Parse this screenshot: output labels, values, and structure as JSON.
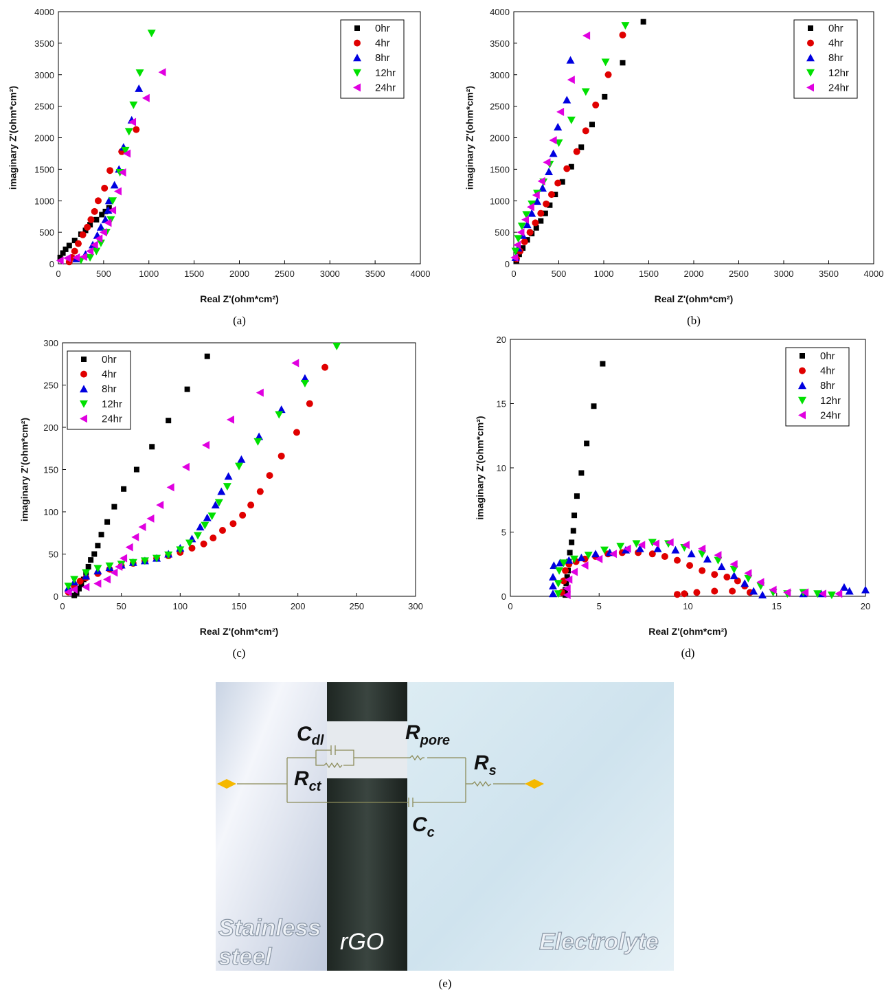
{
  "chart_data": [
    {
      "type": "scatter",
      "caption": "(a)",
      "x_label": "Real Z'(ohm*cm²)",
      "y_label": "imaginary Z'(ohm*cm²)",
      "xlim": [
        0,
        4000
      ],
      "ylim": [
        0,
        4000
      ],
      "xticks": [
        0,
        500,
        1000,
        1500,
        2000,
        2500,
        3000,
        3500,
        4000
      ],
      "yticks": [
        0,
        500,
        1000,
        1500,
        2000,
        2500,
        3000,
        3500,
        4000
      ],
      "legend": "upper right",
      "series": [
        {
          "name": "0hr",
          "color": "#000000",
          "marker": "square",
          "x": [
            20,
            50,
            80,
            120,
            180,
            250,
            300,
            350,
            420,
            480,
            520,
            560
          ],
          "y": [
            100,
            170,
            230,
            290,
            370,
            470,
            530,
            620,
            700,
            780,
            830,
            890
          ]
        },
        {
          "name": "4hr",
          "color": "#e00000",
          "marker": "circle",
          "x": [
            120,
            150,
            180,
            220,
            270,
            320,
            360,
            400,
            440,
            510,
            570,
            700,
            860
          ],
          "y": [
            30,
            100,
            200,
            320,
            460,
            580,
            700,
            830,
            1000,
            1200,
            1480,
            1780,
            2130
          ]
        },
        {
          "name": "8hr",
          "color": "#0000e0",
          "marker": "triangle-up",
          "x": [
            200,
            300,
            380,
            430,
            470,
            520,
            550,
            560,
            620,
            670,
            720,
            810,
            890
          ],
          "y": [
            80,
            150,
            300,
            450,
            580,
            700,
            850,
            1000,
            1250,
            1500,
            1850,
            2280,
            2780
          ]
        },
        {
          "name": "12hr",
          "color": "#00e000",
          "marker": "triangle-down",
          "x": [
            250,
            350,
            420,
            470,
            530,
            580,
            600,
            680,
            740,
            780,
            830,
            900,
            1030
          ],
          "y": [
            60,
            100,
            200,
            330,
            500,
            700,
            1000,
            1450,
            1800,
            2100,
            2520,
            3030,
            3660
          ]
        },
        {
          "name": "24hr",
          "color": "#e000e0",
          "marker": "triangle-left",
          "x": [
            20,
            100,
            200,
            280,
            350,
            400,
            450,
            500,
            550,
            600,
            660,
            710,
            760,
            820,
            970,
            1150
          ],
          "y": [
            50,
            90,
            100,
            110,
            200,
            300,
            400,
            500,
            650,
            850,
            1150,
            1450,
            1750,
            2250,
            2630,
            3040
          ]
        }
      ]
    },
    {
      "type": "scatter",
      "caption": "(b)",
      "x_label": "Real Z'(ohm*cm²)",
      "y_label": "imaginary Z'(ohm*cm²)",
      "xlim": [
        0,
        4000
      ],
      "ylim": [
        0,
        4000
      ],
      "xticks": [
        0,
        500,
        1000,
        1500,
        2000,
        2500,
        3000,
        3500,
        4000
      ],
      "yticks": [
        0,
        500,
        1000,
        1500,
        2000,
        2500,
        3000,
        3500,
        4000
      ],
      "legend": "upper right",
      "series": [
        {
          "name": "0hr",
          "color": "#000000",
          "marker": "square",
          "x": [
            30,
            60,
            100,
            150,
            200,
            250,
            300,
            350,
            400,
            460,
            540,
            640,
            750,
            870,
            1010,
            1210,
            1440
          ],
          "y": [
            50,
            150,
            250,
            380,
            480,
            570,
            680,
            800,
            930,
            1100,
            1300,
            1540,
            1850,
            2210,
            2650,
            3190,
            3840
          ]
        },
        {
          "name": "4hr",
          "color": "#e00000",
          "marker": "circle",
          "x": [
            30,
            70,
            120,
            180,
            240,
            300,
            360,
            420,
            490,
            590,
            700,
            800,
            910,
            1050,
            1210
          ],
          "y": [
            80,
            200,
            350,
            500,
            650,
            800,
            950,
            1100,
            1280,
            1510,
            1780,
            2110,
            2520,
            3000,
            3630
          ]
        },
        {
          "name": "8hr",
          "color": "#0000e0",
          "marker": "triangle-up",
          "x": [
            20,
            50,
            100,
            150,
            200,
            260,
            320,
            390,
            440,
            490,
            590,
            630
          ],
          "y": [
            100,
            250,
            450,
            620,
            800,
            990,
            1200,
            1460,
            1750,
            2170,
            2600,
            3230
          ]
        },
        {
          "name": "12hr",
          "color": "#00e000",
          "marker": "triangle-down",
          "x": [
            20,
            50,
            90,
            140,
            200,
            260,
            330,
            400,
            500,
            640,
            800,
            1020,
            1240
          ],
          "y": [
            200,
            400,
            600,
            780,
            950,
            1120,
            1300,
            1580,
            1920,
            2280,
            2730,
            3200,
            3780
          ]
        },
        {
          "name": "24hr",
          "color": "#e000e0",
          "marker": "triangle-left",
          "x": [
            10,
            40,
            80,
            130,
            190,
            250,
            310,
            370,
            440,
            520,
            640,
            810
          ],
          "y": [
            100,
            300,
            500,
            700,
            900,
            1090,
            1310,
            1610,
            1960,
            2410,
            2920,
            3620
          ]
        }
      ]
    },
    {
      "type": "scatter",
      "caption": "(c)",
      "x_label": "Real Z'(ohm*cm²)",
      "y_label": "imaginary Z'(ohm*cm²)",
      "xlim": [
        0,
        300
      ],
      "ylim": [
        0,
        300
      ],
      "xticks": [
        0,
        50,
        100,
        150,
        200,
        250,
        300
      ],
      "yticks": [
        0,
        50,
        100,
        150,
        200,
        250,
        300
      ],
      "legend": "upper left",
      "series": [
        {
          "name": "0hr",
          "color": "#000000",
          "marker": "square",
          "x": [
            10,
            12,
            14,
            16,
            18,
            20,
            22,
            24,
            27,
            30,
            33,
            38,
            44,
            52,
            63,
            76,
            90,
            106,
            123
          ],
          "y": [
            1,
            4,
            9,
            14,
            20,
            28,
            35,
            43,
            50,
            60,
            73,
            88,
            106,
            127,
            150,
            177,
            208,
            245,
            284
          ]
        },
        {
          "name": "4hr",
          "color": "#e00000",
          "marker": "circle",
          "x": [
            5,
            10,
            15,
            20,
            30,
            40,
            50,
            60,
            70,
            80,
            90,
            100,
            110,
            120,
            128,
            136,
            145,
            153,
            160,
            168,
            176,
            186,
            199,
            210,
            223
          ],
          "y": [
            5,
            12,
            18,
            22,
            27,
            32,
            36,
            39,
            42,
            45,
            48,
            52,
            57,
            62,
            69,
            78,
            86,
            96,
            108,
            124,
            143,
            166,
            194,
            228,
            271
          ]
        },
        {
          "name": "8hr",
          "color": "#0000e0",
          "marker": "triangle-up",
          "x": [
            5,
            10,
            20,
            30,
            40,
            50,
            60,
            70,
            80,
            90,
            100,
            110,
            117,
            123,
            130,
            135,
            141,
            152,
            167,
            186,
            206
          ],
          "y": [
            10,
            17,
            24,
            30,
            34,
            37,
            40,
            42,
            45,
            50,
            57,
            68,
            82,
            93,
            108,
            124,
            142,
            162,
            189,
            221,
            258
          ]
        },
        {
          "name": "12hr",
          "color": "#00e000",
          "marker": "triangle-down",
          "x": [
            5,
            10,
            20,
            30,
            40,
            50,
            60,
            70,
            80,
            90,
            100,
            108,
            115,
            121,
            127,
            133,
            140,
            150,
            166,
            184,
            206,
            233
          ],
          "y": [
            12,
            20,
            28,
            33,
            36,
            38,
            40,
            42,
            45,
            49,
            55,
            63,
            72,
            84,
            95,
            111,
            130,
            154,
            183,
            215,
            252,
            296
          ]
        },
        {
          "name": "24hr",
          "color": "#e000e0",
          "marker": "triangle-left",
          "x": [
            5,
            10,
            20,
            30,
            38,
            44,
            48,
            52,
            57,
            62,
            68,
            75,
            83,
            92,
            105,
            122,
            143,
            168,
            198
          ],
          "y": [
            5,
            8,
            11,
            15,
            20,
            28,
            35,
            45,
            58,
            70,
            82,
            92,
            108,
            129,
            153,
            179,
            209,
            241,
            276
          ]
        }
      ]
    },
    {
      "type": "scatter",
      "caption": "(d)",
      "x_label": "Real Z'(ohm*cm²)",
      "y_label": "imaginary Z'(ohm*cm²)",
      "xlim": [
        0,
        20
      ],
      "ylim": [
        0,
        20
      ],
      "xticks": [
        0,
        5,
        10,
        15,
        20
      ],
      "yticks": [
        0,
        5,
        10,
        15,
        20
      ],
      "legend": "upper right",
      "series": [
        {
          "name": "0hr",
          "color": "#000000",
          "marker": "square",
          "x": [
            3.1,
            3.1,
            3.15,
            3.2,
            3.25,
            3.3,
            3.35,
            3.45,
            3.55,
            3.6,
            3.75,
            4.0,
            4.3,
            4.7,
            5.2
          ],
          "y": [
            0.1,
            0.5,
            1.0,
            1.5,
            2.0,
            2.7,
            3.4,
            4.2,
            5.1,
            6.3,
            7.8,
            9.6,
            11.9,
            14.8,
            18.1
          ]
        },
        {
          "name": "4hr",
          "color": "#e00000",
          "marker": "circle",
          "x": [
            2.9,
            3.0,
            3.1,
            3.3,
            3.7,
            4.2,
            4.8,
            5.5,
            6.3,
            7.2,
            8.0,
            8.7,
            9.4,
            10.1,
            10.8,
            11.5,
            12.2,
            12.8,
            13.2,
            13.5,
            12.5,
            11.5,
            10.5,
            9.8,
            9.4
          ],
          "y": [
            0.3,
            1.2,
            2.0,
            2.5,
            2.7,
            2.9,
            3.1,
            3.3,
            3.4,
            3.4,
            3.3,
            3.1,
            2.8,
            2.4,
            2.0,
            1.7,
            1.5,
            1.2,
            0.8,
            0.3,
            0.4,
            0.4,
            0.3,
            0.2,
            0.15
          ]
        },
        {
          "name": "8hr",
          "color": "#0000e0",
          "marker": "triangle-up",
          "x": [
            2.4,
            2.4,
            2.4,
            2.45,
            2.8,
            3.3,
            4.0,
            4.8,
            5.6,
            6.5,
            7.3,
            8.3,
            9.3,
            10.2,
            11.1,
            11.9,
            12.6,
            13.2,
            13.7,
            14.2,
            16.5,
            17.5,
            18.8,
            19.1,
            20
          ],
          "y": [
            0.2,
            0.8,
            1.5,
            2.4,
            2.6,
            2.8,
            3.0,
            3.3,
            3.4,
            3.6,
            3.7,
            3.7,
            3.6,
            3.3,
            2.9,
            2.3,
            1.6,
            1.0,
            0.4,
            0.1,
            0.2,
            0.2,
            0.7,
            0.4,
            0.5
          ]
        },
        {
          "name": "12hr",
          "color": "#00e000",
          "marker": "triangle-down",
          "x": [
            2.7,
            2.7,
            2.75,
            3.0,
            3.6,
            4.4,
            5.3,
            6.2,
            7.1,
            8.0,
            8.9,
            9.8,
            10.8,
            11.7,
            12.6,
            13.4,
            14.1,
            14.8,
            15.6,
            16.5,
            17.3,
            18.1
          ],
          "y": [
            0.2,
            1.0,
            2.0,
            2.6,
            2.9,
            3.2,
            3.6,
            3.9,
            4.1,
            4.2,
            4.1,
            3.8,
            3.3,
            2.8,
            2.1,
            1.4,
            0.8,
            0.3,
            0.2,
            0.3,
            0.2,
            0.1
          ]
        },
        {
          "name": "24hr",
          "color": "#e000e0",
          "marker": "triangle-left",
          "x": [
            3.2,
            3.2,
            3.3,
            3.6,
            4.2,
            5.0,
            5.8,
            6.6,
            7.4,
            8.2,
            9.0,
            9.9,
            10.8,
            11.7,
            12.6,
            13.4,
            14.1,
            14.8,
            15.6,
            16.6,
            17.6,
            18.5
          ],
          "y": [
            0.1,
            0.6,
            1.3,
            1.9,
            2.4,
            2.9,
            3.3,
            3.7,
            4.0,
            4.1,
            4.2,
            4.0,
            3.7,
            3.2,
            2.5,
            1.8,
            1.1,
            0.5,
            0.3,
            0.3,
            0.2,
            0.2
          ]
        }
      ]
    }
  ],
  "diagram": {
    "caption": "(e)",
    "labels": {
      "c_dl": {
        "main": "C",
        "sub": "dl"
      },
      "r_pore": {
        "main": "R",
        "sub": "pore"
      },
      "r_s": {
        "main": "R",
        "sub": "s"
      },
      "r_ct": {
        "main": "R",
        "sub": "ct"
      },
      "c_c": {
        "main": "C",
        "sub": "c"
      }
    },
    "regions": {
      "stainless_steel": [
        "Stainless",
        "steel"
      ],
      "rgo": "rGO",
      "electrolyte": "Electrolyte"
    }
  }
}
